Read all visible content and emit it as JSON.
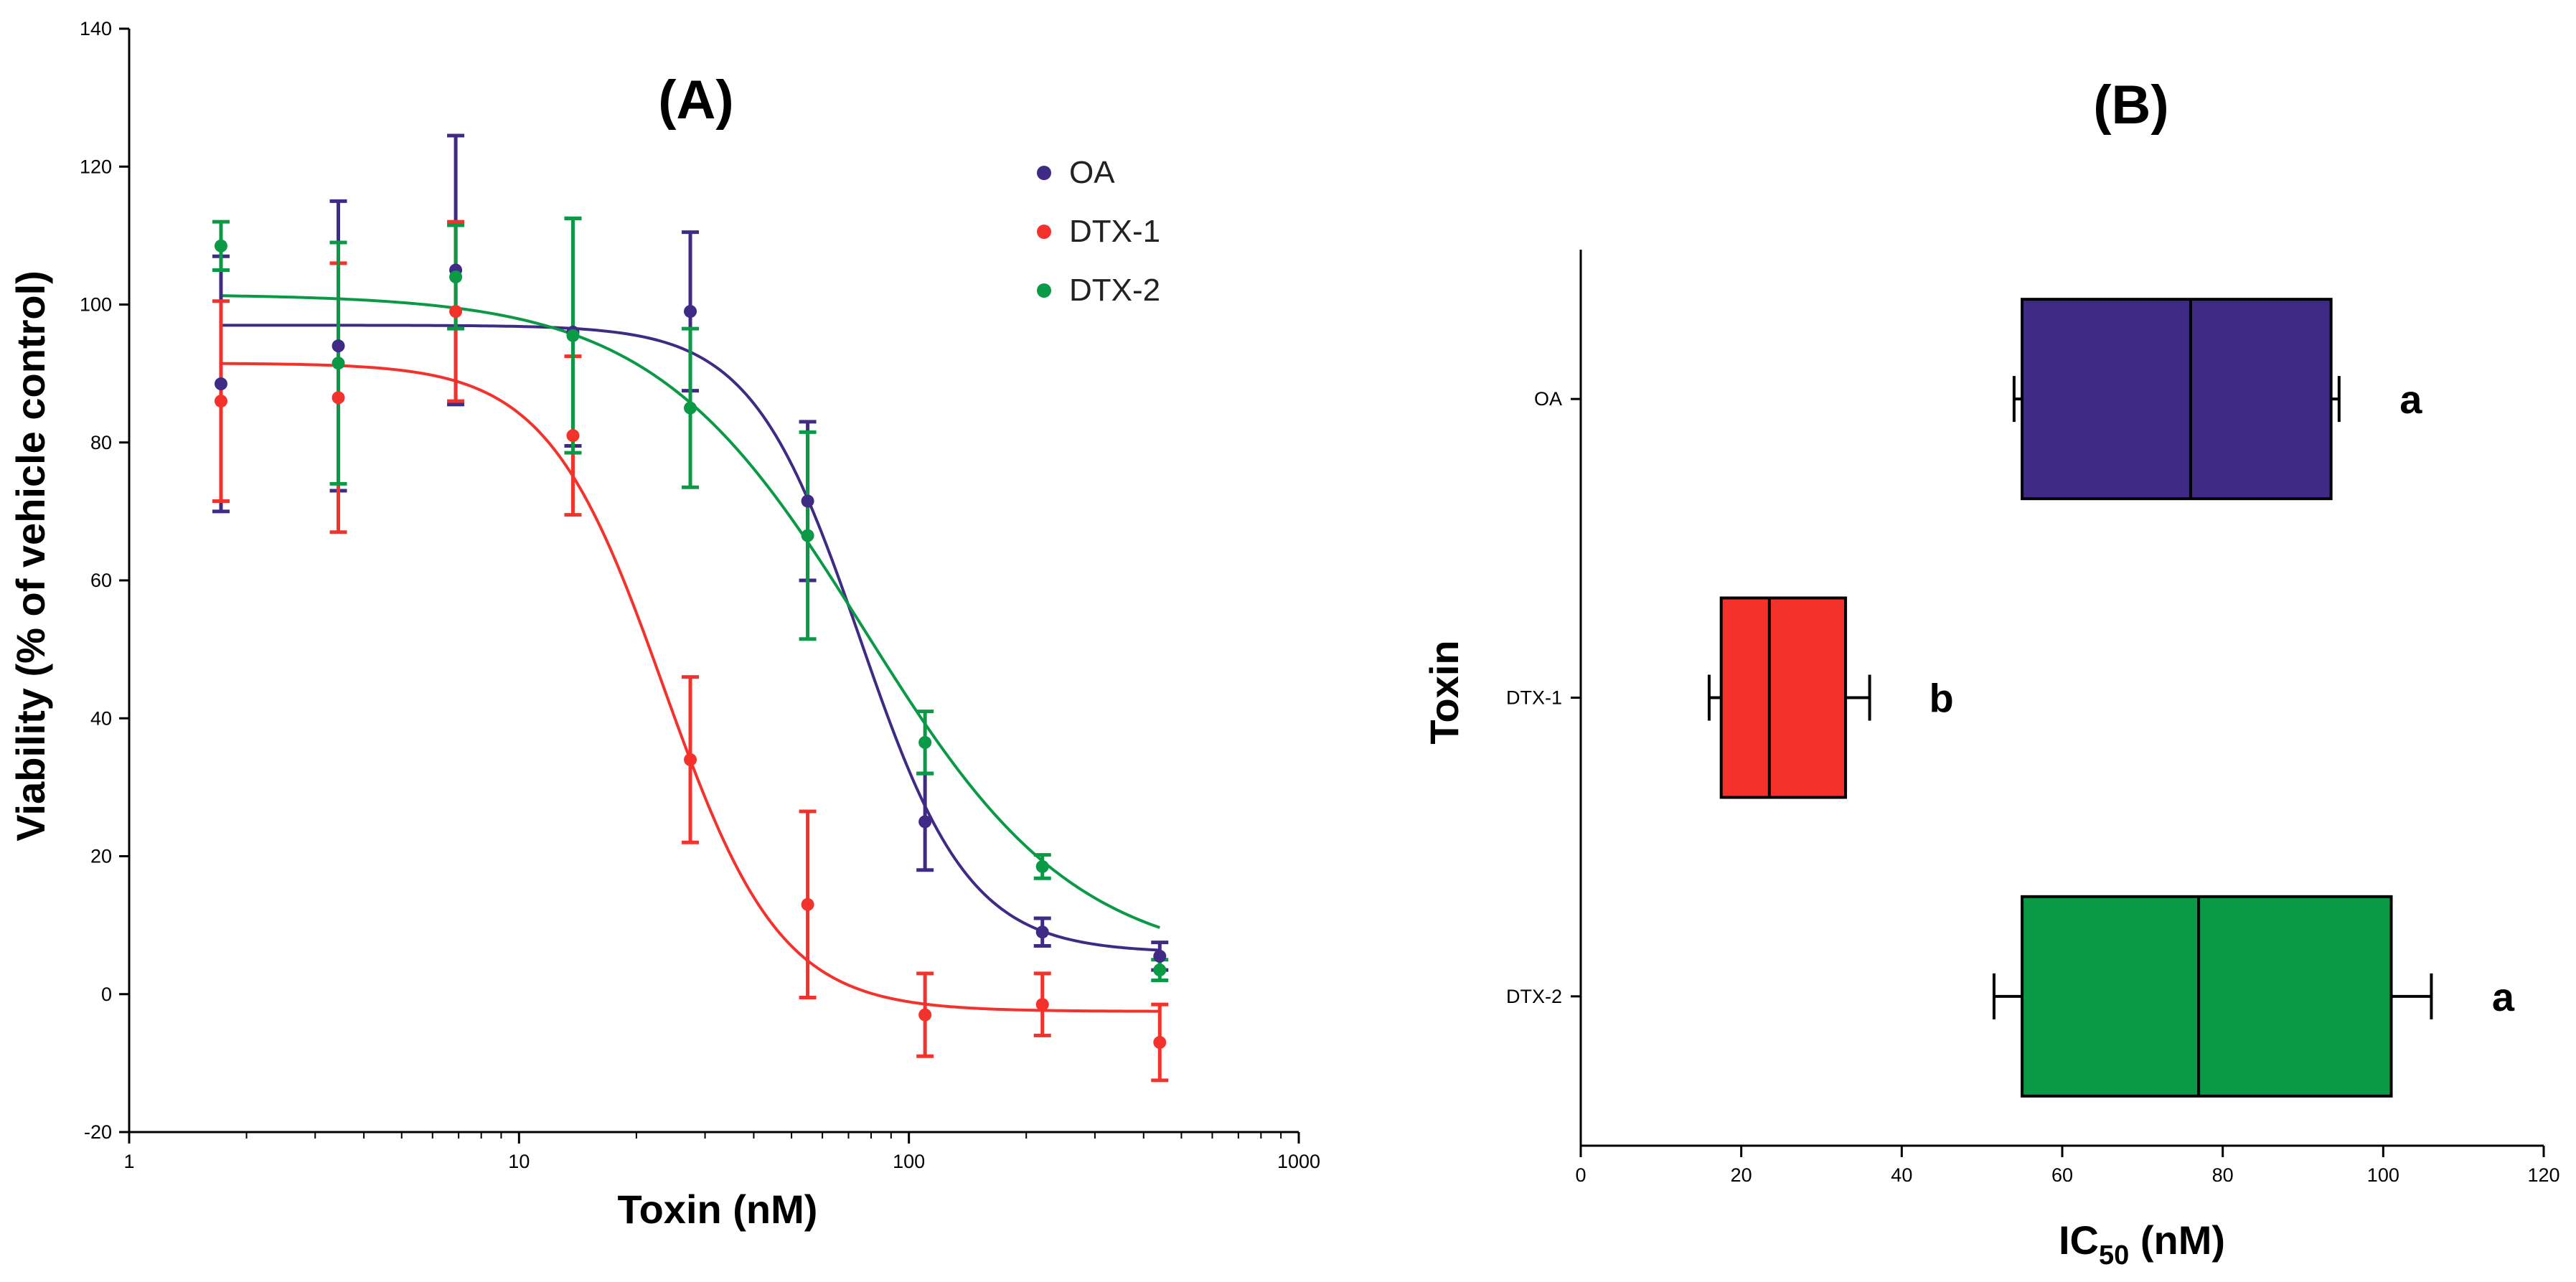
{
  "colors": {
    "OA": "#3f2a86",
    "DTX-1": "#f5312b",
    "DTX-2": "#0a9a45",
    "axis": "#000000"
  },
  "chart_data": [
    {
      "panel": "(A)",
      "type": "scatter",
      "title": "(A)",
      "xlabel": "Toxin (nM)",
      "ylabel": "Viability (% of vehicle control)",
      "xscale": "log",
      "xlim": [
        1,
        1000
      ],
      "ylim": [
        -20,
        140
      ],
      "xticks": [
        1,
        10,
        100,
        1000
      ],
      "xtick_labels": [
        "1",
        "10",
        "100",
        "1000"
      ],
      "yticks": [
        -20,
        0,
        20,
        40,
        60,
        80,
        100,
        120,
        140
      ],
      "ytick_labels": [
        "-20",
        "0",
        "20",
        "40",
        "60",
        "80",
        "100",
        "120",
        "140"
      ],
      "legend": {
        "placement": "top-right",
        "entries": [
          "OA",
          "DTX-1",
          "DTX-2"
        ]
      },
      "x": [
        1.72,
        3.44,
        6.88,
        13.75,
        27.5,
        55,
        110,
        220,
        440
      ],
      "series": [
        {
          "name": "OA",
          "values": [
            88.5,
            94,
            105,
            96,
            99,
            71.5,
            25,
            9,
            5.5
          ],
          "errors": [
            18.5,
            21,
            19.5,
            16.5,
            11.5,
            11.5,
            7,
            2,
            2
          ],
          "fit": {
            "top": 97,
            "bottom": 6,
            "ec50": 75,
            "hill": 3.1
          }
        },
        {
          "name": "DTX-1",
          "values": [
            86,
            86.5,
            99,
            81,
            34,
            13,
            -3,
            -1.5,
            -7
          ],
          "errors": [
            14.5,
            19.5,
            13,
            11.5,
            12,
            13.5,
            6,
            4.5,
            5.5
          ],
          "fit": {
            "top": 91.5,
            "bottom": -2.5,
            "ec50": 23.5,
            "hill": 2.9
          }
        },
        {
          "name": "DTX-2",
          "values": [
            108.5,
            91.5,
            104,
            95.5,
            85,
            66.5,
            36.5,
            18.5,
            3.5
          ],
          "errors": [
            3.5,
            17.5,
            7.5,
            17,
            11.5,
            15,
            4.5,
            1.7,
            1.5
          ],
          "fit": {
            "top": 101.5,
            "bottom": 4,
            "ec50": 77,
            "hill": 1.6
          }
        }
      ]
    },
    {
      "panel": "(B)",
      "type": "box",
      "title": "(B)",
      "xlabel": "IC50 (nM)",
      "xlabel_main": "IC",
      "xlabel_sub": "50",
      "xlabel_unit": " (nM)",
      "ylabel": "Toxin",
      "xlim": [
        0,
        120
      ],
      "xticks": [
        0,
        20,
        40,
        60,
        80,
        100,
        120
      ],
      "xtick_labels": [
        "0",
        "20",
        "40",
        "60",
        "80",
        "100",
        "120"
      ],
      "categories": [
        "OA",
        "DTX-1",
        "DTX-2"
      ],
      "boxes": [
        {
          "name": "OA",
          "min": 54,
          "q1": 55,
          "median": 76,
          "q3": 93.5,
          "max": 94.5,
          "letter": "a"
        },
        {
          "name": "DTX-1",
          "min": 16,
          "q1": 17.5,
          "median": 23.5,
          "q3": 33,
          "max": 36,
          "letter": "b"
        },
        {
          "name": "DTX-2",
          "min": 51.5,
          "q1": 55,
          "median": 77,
          "q3": 101,
          "max": 106,
          "letter": "a"
        }
      ]
    }
  ]
}
